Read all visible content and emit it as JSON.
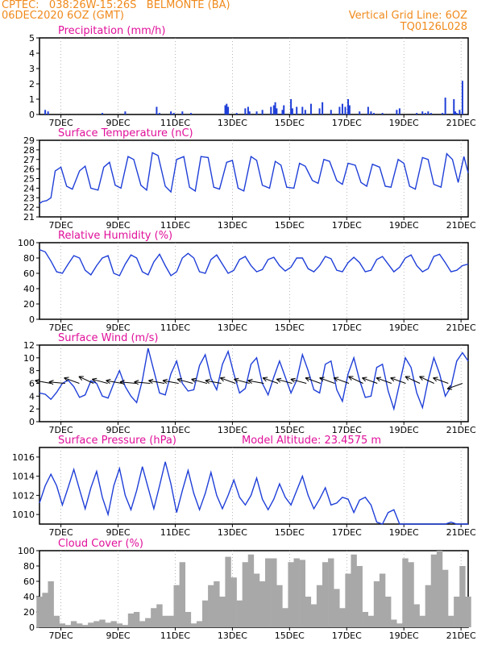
{
  "header": {
    "line1": "CPTEC:   038:26W-15:26S   BELMONTE (BA)",
    "line2": "06DEC2020 6OZ (GMT)",
    "grid_note": "Vertical Grid Line: 6OZ",
    "code": "TQ0126L028"
  },
  "x_ticks": [
    "7DEC",
    "9DEC",
    "11DEC",
    "13DEC",
    "15DEC",
    "17DEC",
    "19DEC",
    "21DEC"
  ],
  "colors": {
    "header": "#f08a1c",
    "title": "#e0109a",
    "line": "#1f3fd8",
    "bar": "#1f3fd8",
    "cloud": "#a8a8a8",
    "arrow": "#000000"
  },
  "chart_data": [
    {
      "type": "bar",
      "title": "Precipitation (mm/h)",
      "ylim": [
        0,
        5
      ],
      "yticks": [
        "0",
        "1",
        "2",
        "3",
        "4",
        "5"
      ],
      "x_range_days": [
        0,
        15
      ],
      "series": [
        {
          "x_days": [
            0.2,
            0.3,
            2.2,
            3.0,
            4.1,
            4.2,
            4.6,
            4.7,
            5.0,
            5.3,
            6.5,
            6.55,
            6.6,
            6.9,
            7.2,
            7.3,
            7.35,
            7.6,
            7.8,
            8.1,
            8.2,
            8.25,
            8.3,
            8.5,
            8.55,
            8.8,
            8.85,
            9.0,
            9.2,
            9.3,
            9.5,
            9.8,
            9.9,
            10.2,
            10.5,
            10.6,
            10.7,
            10.8,
            10.85,
            11.2,
            11.5,
            11.6,
            11.7,
            12.0,
            12.5,
            12.6,
            13.2,
            13.4,
            13.5,
            13.6,
            13.7,
            14.1,
            14.2,
            14.5,
            14.55,
            14.6,
            14.7,
            14.8
          ],
          "values": [
            0.3,
            0.2,
            0.1,
            0.2,
            0.5,
            0.1,
            0.2,
            0.1,
            0.2,
            0.1,
            0.6,
            0.7,
            0.5,
            0.1,
            0.4,
            0.5,
            0.2,
            0.2,
            0.3,
            0.5,
            0.6,
            0.8,
            0.4,
            0.3,
            0.6,
            1.0,
            0.4,
            0.5,
            0.5,
            0.3,
            0.7,
            0.4,
            0.8,
            0.3,
            0.5,
            0.7,
            0.5,
            1.0,
            0.6,
            0.2,
            0.5,
            0.2,
            0.1,
            0.1,
            0.3,
            0.4,
            0.1,
            0.2,
            0.1,
            0.2,
            0.1,
            0.1,
            1.1,
            1.0,
            0.2,
            0.1,
            0.3,
            2.2
          ]
        }
      ]
    },
    {
      "type": "line",
      "title": "Surface Temperature (nC)",
      "ylim": [
        21,
        29
      ],
      "yticks": [
        "21",
        "22",
        "23",
        "24",
        "25",
        "26",
        "27",
        "28",
        "29"
      ],
      "series": [
        {
          "x_days": [
            0,
            0.1,
            0.25,
            0.4,
            0.55,
            0.75,
            0.95,
            1.15,
            1.4,
            1.6,
            1.8,
            2.05,
            2.25,
            2.45,
            2.65,
            2.85,
            3.1,
            3.3,
            3.55,
            3.75,
            3.95,
            4.15,
            4.4,
            4.6,
            4.8,
            5.05,
            5.25,
            5.45,
            5.65,
            5.9,
            6.1,
            6.3,
            6.55,
            6.75,
            6.95,
            7.15,
            7.4,
            7.6,
            7.8,
            8.05,
            8.25,
            8.45,
            8.65,
            8.9,
            9.1,
            9.3,
            9.55,
            9.75,
            9.95,
            10.15,
            10.4,
            10.6,
            10.8,
            11.05,
            11.25,
            11.45,
            11.65,
            11.9,
            12.1,
            12.3,
            12.55,
            12.75,
            12.95,
            13.15,
            13.4,
            13.6,
            13.8,
            14.05,
            14.25,
            14.45,
            14.65,
            14.85,
            15
          ],
          "values": [
            22.4,
            22.6,
            22.7,
            23.0,
            25.8,
            26.2,
            24.2,
            23.9,
            25.8,
            26.3,
            24.0,
            23.8,
            26.2,
            26.7,
            24.3,
            24.0,
            27.3,
            27.0,
            24.3,
            23.8,
            27.7,
            27.4,
            24.2,
            23.6,
            27.0,
            27.3,
            24.1,
            23.7,
            27.3,
            27.2,
            24.1,
            23.9,
            26.7,
            26.9,
            24.0,
            23.7,
            27.3,
            26.9,
            24.3,
            24.0,
            26.8,
            26.4,
            24.1,
            24.0,
            26.6,
            26.3,
            24.8,
            24.5,
            27.0,
            26.8,
            24.8,
            24.4,
            26.6,
            26.4,
            24.6,
            24.2,
            26.5,
            26.2,
            24.2,
            24.1,
            27.0,
            26.6,
            24.2,
            23.9,
            27.2,
            27.0,
            24.4,
            24.1,
            27.6,
            27.0,
            24.6,
            27.3,
            25.6
          ]
        }
      ]
    },
    {
      "type": "line",
      "title": "Relative Humidity (%)",
      "ylim": [
        0,
        100
      ],
      "yticks": [
        "0",
        "20",
        "40",
        "60",
        "80",
        "100"
      ],
      "series": [
        {
          "x_days": [
            0,
            0.2,
            0.4,
            0.6,
            0.8,
            1.0,
            1.2,
            1.4,
            1.6,
            1.8,
            2.0,
            2.2,
            2.4,
            2.6,
            2.8,
            3.0,
            3.2,
            3.4,
            3.6,
            3.8,
            4.0,
            4.2,
            4.4,
            4.6,
            4.8,
            5.0,
            5.2,
            5.4,
            5.6,
            5.8,
            6.0,
            6.2,
            6.4,
            6.6,
            6.8,
            7.0,
            7.2,
            7.4,
            7.6,
            7.8,
            8.0,
            8.2,
            8.4,
            8.6,
            8.8,
            9.0,
            9.2,
            9.4,
            9.6,
            9.8,
            10.0,
            10.2,
            10.4,
            10.6,
            10.8,
            11.0,
            11.2,
            11.4,
            11.6,
            11.8,
            12.0,
            12.2,
            12.4,
            12.6,
            12.8,
            13.0,
            13.2,
            13.4,
            13.6,
            13.8,
            14.0,
            14.2,
            14.4,
            14.6,
            14.8,
            15
          ],
          "values": [
            91,
            88,
            76,
            62,
            60,
            72,
            83,
            80,
            64,
            58,
            70,
            80,
            83,
            60,
            57,
            72,
            84,
            80,
            62,
            58,
            75,
            85,
            70,
            57,
            62,
            80,
            86,
            80,
            62,
            60,
            78,
            84,
            72,
            60,
            64,
            78,
            82,
            70,
            62,
            65,
            78,
            81,
            70,
            63,
            68,
            80,
            80,
            66,
            62,
            70,
            82,
            79,
            64,
            62,
            74,
            81,
            74,
            62,
            64,
            78,
            82,
            72,
            62,
            68,
            80,
            84,
            70,
            62,
            66,
            82,
            85,
            74,
            62,
            64,
            70,
            72
          ]
        }
      ]
    },
    {
      "type": "line",
      "title": "Surface Wind (m/s)",
      "ylim": [
        0,
        12
      ],
      "yticks": [
        "0",
        "2",
        "4",
        "6",
        "8",
        "10",
        "12"
      ],
      "series": [
        {
          "x_days": [
            0,
            0.2,
            0.4,
            0.6,
            0.8,
            1.0,
            1.2,
            1.4,
            1.6,
            1.8,
            2.0,
            2.2,
            2.4,
            2.6,
            2.8,
            3.0,
            3.2,
            3.4,
            3.6,
            3.8,
            4.0,
            4.2,
            4.4,
            4.6,
            4.8,
            5.0,
            5.2,
            5.4,
            5.6,
            5.8,
            6.0,
            6.2,
            6.4,
            6.6,
            6.8,
            7.0,
            7.2,
            7.4,
            7.6,
            7.8,
            8.0,
            8.2,
            8.4,
            8.6,
            8.8,
            9.0,
            9.2,
            9.4,
            9.6,
            9.8,
            10.0,
            10.2,
            10.4,
            10.6,
            10.8,
            11.0,
            11.2,
            11.4,
            11.6,
            11.8,
            12.0,
            12.2,
            12.4,
            12.6,
            12.8,
            13.0,
            13.2,
            13.4,
            13.6,
            13.8,
            14.0,
            14.2,
            14.4,
            14.6,
            14.8,
            15
          ],
          "values": [
            4.5,
            4.3,
            3.5,
            4.6,
            6.0,
            6.5,
            5.5,
            3.8,
            4.2,
            6.4,
            6.0,
            4.0,
            3.7,
            6.0,
            8.0,
            5.5,
            4.0,
            3.0,
            6.5,
            11.5,
            8.0,
            4.5,
            4.2,
            7.5,
            9.5,
            6.0,
            4.8,
            5.0,
            8.8,
            10.5,
            6.8,
            5.0,
            9.0,
            11.0,
            7.5,
            4.5,
            5.2,
            9.0,
            10.0,
            6.0,
            4.2,
            7.0,
            9.5,
            7.0,
            4.5,
            6.5,
            10.5,
            8.0,
            5.0,
            4.5,
            9.0,
            9.5,
            5.0,
            3.2,
            7.5,
            10.0,
            6.5,
            3.8,
            4.0,
            8.5,
            9.0,
            4.8,
            2.0,
            6.0,
            10.0,
            8.5,
            4.5,
            2.2,
            6.5,
            10.0,
            7.5,
            4.0,
            5.5,
            9.5,
            10.8,
            9.5
          ]
        }
      ],
      "wind_arrows_deg_to": [
        170,
        175,
        160,
        155,
        165,
        170,
        175,
        175,
        170,
        170,
        165,
        165,
        170,
        160,
        165,
        170,
        160,
        165,
        165,
        160,
        160,
        160,
        155,
        160,
        160,
        160,
        155,
        155,
        160,
        200
      ]
    },
    {
      "type": "line",
      "title": "Surface Pressure (hPa)",
      "subtitle": "Model Altitude: 23.4575 m",
      "ylim": [
        1009,
        1017
      ],
      "yticks": [
        "1010",
        "1012",
        "1014",
        "1016"
      ],
      "series": [
        {
          "x_days": [
            0,
            0.2,
            0.4,
            0.6,
            0.8,
            1.0,
            1.2,
            1.4,
            1.6,
            1.8,
            2.0,
            2.2,
            2.4,
            2.6,
            2.8,
            3.0,
            3.2,
            3.4,
            3.6,
            3.8,
            4.0,
            4.2,
            4.4,
            4.6,
            4.8,
            5.0,
            5.2,
            5.4,
            5.6,
            5.8,
            6.0,
            6.2,
            6.4,
            6.6,
            6.8,
            7.0,
            7.2,
            7.4,
            7.6,
            7.8,
            8.0,
            8.2,
            8.4,
            8.6,
            8.8,
            9.0,
            9.2,
            9.4,
            9.6,
            9.8,
            10.0,
            10.2,
            10.4,
            10.6,
            10.8,
            11.0,
            11.2,
            11.4,
            11.6,
            11.8,
            12.0,
            12.2,
            12.4,
            12.6,
            12.8,
            13.0,
            13.2,
            13.4,
            13.6,
            13.8,
            14.0,
            14.2,
            14.4,
            14.6,
            14.8,
            15
          ],
          "values": [
            1011.2,
            1013.0,
            1014.2,
            1013.0,
            1011.0,
            1012.8,
            1014.7,
            1012.6,
            1010.6,
            1012.8,
            1014.5,
            1011.8,
            1010.0,
            1013.0,
            1014.8,
            1012.0,
            1010.5,
            1012.5,
            1015.0,
            1012.8,
            1010.6,
            1013.0,
            1015.5,
            1013.2,
            1010.2,
            1012.5,
            1014.6,
            1012.2,
            1010.5,
            1012.2,
            1014.4,
            1012.0,
            1010.6,
            1012.0,
            1013.6,
            1011.8,
            1011.0,
            1012.0,
            1013.8,
            1011.6,
            1010.5,
            1011.6,
            1013.2,
            1011.8,
            1011.0,
            1012.5,
            1014.0,
            1012.0,
            1010.6,
            1011.6,
            1012.8,
            1011.0,
            1011.2,
            1011.8,
            1011.6,
            1010.2,
            1011.5,
            1011.8,
            1011.0,
            1009.2,
            1008.8,
            1010.2,
            1010.5,
            1009.0,
            1008.5,
            1008.8,
            1008.8,
            1008.6,
            1008.8,
            1009.0,
            1008.8,
            1008.8,
            1009.2,
            1009.0,
            1008.6,
            1008.8
          ]
        }
      ]
    },
    {
      "type": "bar",
      "title": "Cloud Cover (%)",
      "ylim": [
        0,
        100
      ],
      "yticks": [
        "0",
        "20",
        "40",
        "60",
        "80",
        "100"
      ],
      "series": [
        {
          "x_days": [
            0.0,
            0.2,
            0.4,
            0.6,
            0.8,
            1.0,
            1.2,
            1.4,
            1.6,
            1.8,
            2.0,
            2.2,
            2.4,
            2.6,
            2.8,
            3.0,
            3.2,
            3.4,
            3.6,
            3.8,
            4.0,
            4.2,
            4.4,
            4.6,
            4.8,
            5.0,
            5.2,
            5.4,
            5.6,
            5.8,
            6.0,
            6.2,
            6.4,
            6.6,
            6.8,
            7.0,
            7.2,
            7.4,
            7.6,
            7.8,
            8.0,
            8.2,
            8.4,
            8.6,
            8.8,
            9.0,
            9.2,
            9.4,
            9.6,
            9.8,
            10.0,
            10.2,
            10.4,
            10.6,
            10.8,
            11.0,
            11.2,
            11.4,
            11.6,
            11.8,
            12.0,
            12.2,
            12.4,
            12.6,
            12.8,
            13.0,
            13.2,
            13.4,
            13.6,
            13.8,
            14.0,
            14.2,
            14.4,
            14.6,
            14.8,
            15.0
          ],
          "values": [
            40,
            45,
            60,
            15,
            5,
            3,
            8,
            5,
            3,
            6,
            8,
            10,
            6,
            8,
            5,
            3,
            18,
            20,
            8,
            12,
            25,
            30,
            15,
            15,
            55,
            85,
            20,
            5,
            8,
            35,
            55,
            60,
            40,
            92,
            65,
            35,
            85,
            95,
            70,
            60,
            90,
            90,
            55,
            25,
            85,
            90,
            88,
            40,
            30,
            55,
            85,
            90,
            50,
            25,
            70,
            95,
            80,
            20,
            15,
            60,
            70,
            40,
            10,
            5,
            90,
            85,
            30,
            15,
            55,
            95,
            100,
            75,
            15,
            40,
            80,
            40
          ]
        }
      ]
    }
  ]
}
